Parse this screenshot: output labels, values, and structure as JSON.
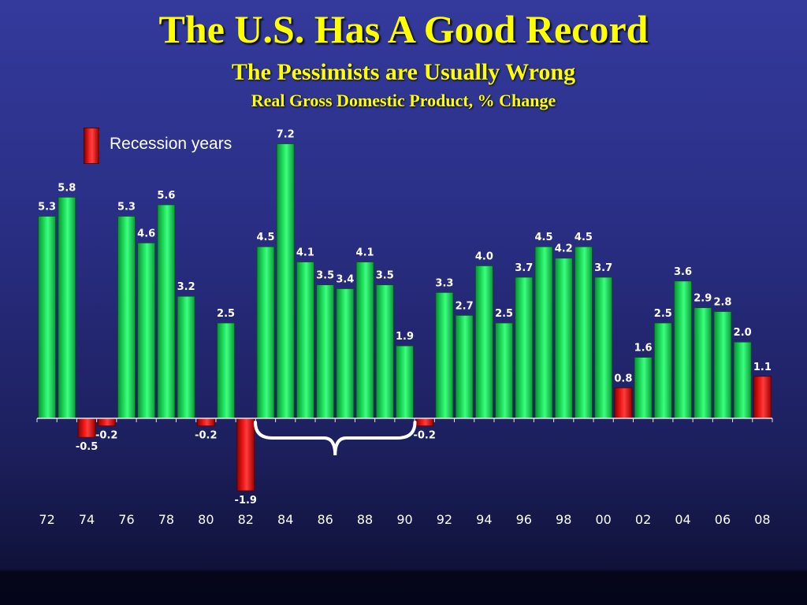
{
  "title": "The U.S. Has A Good Record",
  "subtitle": "The Pessimists are Usually Wrong",
  "subtitle2": "Real Gross Domestic Product, % Change",
  "legend": {
    "label": "Recession years",
    "color": "#ff2020"
  },
  "colors": {
    "growth": "#1de35f",
    "recession": "#ff2020",
    "axis": "#e6e6e6",
    "brace": "#ffffff",
    "title": "#ffff00"
  },
  "chart_data": {
    "type": "bar",
    "title": "Real Gross Domestic Product, % Change",
    "xlabel": "",
    "ylabel": "",
    "ylim": [
      -2.2,
      7.4
    ],
    "grid": false,
    "legend_position": "top-left",
    "categories": [
      "72",
      "73",
      "74",
      "75",
      "76",
      "77",
      "78",
      "79",
      "80",
      "81",
      "82",
      "83",
      "84",
      "85",
      "86",
      "87",
      "88",
      "89",
      "90",
      "91",
      "92",
      "93",
      "94",
      "95",
      "96",
      "97",
      "98",
      "99",
      "00",
      "01",
      "02",
      "03",
      "04",
      "05",
      "06",
      "07",
      "08"
    ],
    "tick_labels": [
      "72",
      "74",
      "76",
      "78",
      "80",
      "82",
      "84",
      "86",
      "88",
      "90",
      "92",
      "94",
      "96",
      "98",
      "00",
      "02",
      "04",
      "06",
      "08"
    ],
    "values": [
      5.3,
      5.8,
      -0.5,
      -0.2,
      5.3,
      4.6,
      5.6,
      3.2,
      -0.2,
      2.5,
      -1.9,
      4.5,
      7.2,
      4.1,
      3.5,
      3.4,
      4.1,
      3.5,
      1.9,
      -0.2,
      3.3,
      2.7,
      4.0,
      2.5,
      3.7,
      4.5,
      4.2,
      4.5,
      3.7,
      0.8,
      1.6,
      2.5,
      3.6,
      2.9,
      2.8,
      2.0,
      1.1
    ],
    "data_labels": [
      "5.3",
      "5.8",
      "-0.5",
      "-0.2",
      "5.3",
      "4.6",
      "5.6",
      "3.2",
      "-0.2",
      "2.5",
      "-1.9",
      "4.5",
      "7.2",
      "4.1",
      "3.5",
      "3.4",
      "4.1",
      "3.5",
      "1.9",
      "-0.2",
      "3.3",
      "2.7",
      "4.0",
      "2.5",
      "3.7",
      "4.5",
      "4.2",
      "4.5",
      "3.7",
      "0.8",
      "1.6",
      "2.5",
      "3.6",
      "2.9",
      "2.8",
      "2.0",
      "1.1"
    ],
    "recession": [
      false,
      false,
      true,
      true,
      false,
      false,
      false,
      false,
      true,
      false,
      true,
      false,
      false,
      false,
      false,
      false,
      false,
      false,
      false,
      true,
      false,
      false,
      false,
      false,
      false,
      false,
      false,
      false,
      false,
      true,
      false,
      false,
      false,
      false,
      false,
      false,
      true
    ],
    "annotations": [
      {
        "type": "brace",
        "from": "83",
        "to": "90"
      }
    ]
  }
}
